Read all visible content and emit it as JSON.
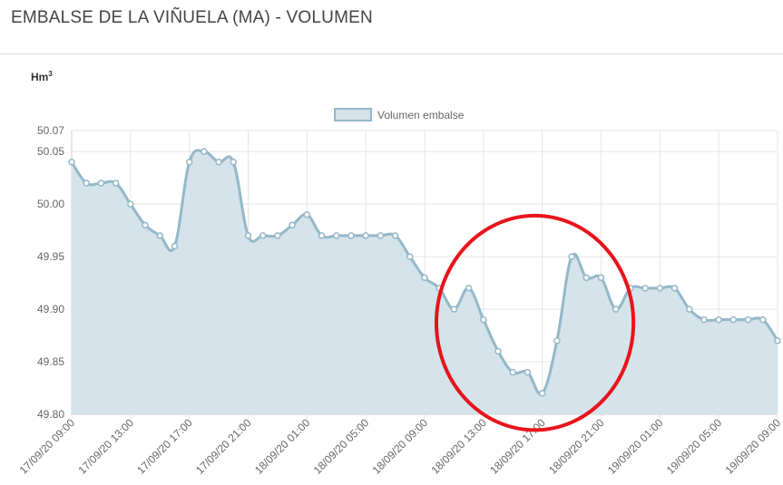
{
  "page": {
    "title": "EMBALSE DE LA VIÑUELA (MA) - VOLUMEN"
  },
  "chart_data": {
    "type": "area",
    "title": "",
    "ylabel": "Hm",
    "ylabel_superscript": "3",
    "xlabel": "",
    "legend": {
      "label": "Volumen embalse",
      "position": "top-center"
    },
    "colors": {
      "line": "#94b8c9",
      "fill": "#d5e3ea",
      "point": "#94b8c9",
      "annotation_circle": "#e8141b"
    },
    "grid": true,
    "ylim": [
      49.8,
      50.07
    ],
    "y_ticks": [
      49.8,
      49.85,
      49.9,
      49.95,
      50.0,
      50.05,
      50.07
    ],
    "y_tick_labels": [
      "49.80",
      "49.85",
      "49.90",
      "49.95",
      "50.00",
      "50.05",
      "50.07"
    ],
    "x_range_hours": [
      0,
      48
    ],
    "x_tick_hours": [
      0,
      4,
      8,
      12,
      16,
      20,
      24,
      28,
      32,
      36,
      40,
      44,
      48
    ],
    "x_tick_labels": [
      "17/09/20 09:00",
      "17/09/20 13:00",
      "17/09/20 17:00",
      "17/09/20 21:00",
      "18/09/20 01:00",
      "18/09/20 05:00",
      "18/09/20 09:00",
      "18/09/20 13:00",
      "18/09/20 17:00",
      "18/09/20 21:00",
      "19/09/20 01:00",
      "19/09/20 05:00",
      "19/09/20 09:00"
    ],
    "series": [
      {
        "name": "Volumen embalse",
        "x": [
          0,
          1,
          2,
          3,
          4,
          5,
          6,
          7,
          8,
          9,
          10,
          11,
          12,
          13,
          14,
          15,
          16,
          17,
          18,
          19,
          20,
          21,
          22,
          23,
          24,
          25,
          26,
          27,
          28,
          29,
          30,
          31,
          32,
          33,
          34,
          35,
          36,
          37,
          38,
          39,
          40,
          41,
          42,
          43,
          44,
          45,
          46,
          47,
          48
        ],
        "values": [
          50.04,
          50.02,
          50.02,
          50.02,
          50.0,
          49.98,
          49.97,
          49.96,
          50.04,
          50.05,
          50.04,
          50.04,
          49.97,
          49.97,
          49.97,
          49.98,
          49.99,
          49.97,
          49.97,
          49.97,
          49.97,
          49.97,
          49.97,
          49.95,
          49.93,
          49.92,
          49.9,
          49.92,
          49.89,
          49.86,
          49.84,
          49.84,
          49.82,
          49.87,
          49.95,
          49.93,
          49.93,
          49.9,
          49.92,
          49.92,
          49.92,
          49.92,
          49.9,
          49.89,
          49.89,
          49.89,
          49.89,
          49.89,
          49.87
        ]
      }
    ],
    "annotation": {
      "type": "circle",
      "center_hours": 31.5,
      "center_value": 49.887,
      "radius_hours": 6.7,
      "radius_value": 0.102
    }
  }
}
